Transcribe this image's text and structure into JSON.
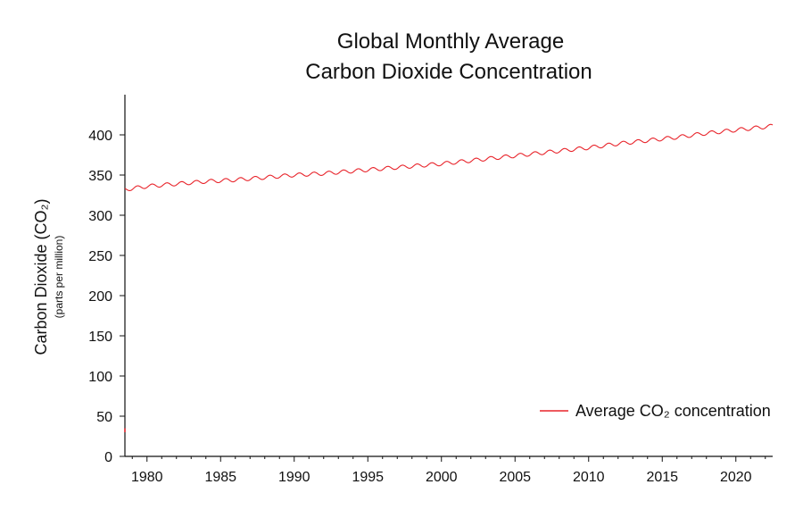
{
  "chart_data": {
    "type": "line",
    "title_lines": [
      "Global Monthly Average",
      "Carbon Dioxide Concentration"
    ],
    "ylabel": "Carbon Dioxide (CO₂)",
    "ylabel_sub": "(parts per million)",
    "xlabel": "",
    "xlim": [
      1978.5,
      2022.5
    ],
    "ylim": [
      0,
      450
    ],
    "x_ticks": [
      1980,
      1985,
      1990,
      1995,
      2000,
      2005,
      2010,
      2015,
      2020
    ],
    "x_tick_labels": [
      "1980",
      "1985",
      "1990",
      "1995",
      "2000",
      "2005",
      "2010",
      "2015",
      "2020"
    ],
    "y_ticks": [
      0,
      50,
      100,
      150,
      200,
      250,
      300,
      350,
      400
    ],
    "y_tick_labels": [
      "0",
      "50",
      "100",
      "150",
      "200",
      "250",
      "300",
      "350",
      "400"
    ],
    "grid": false,
    "legend_position": "bottom-right",
    "series": [
      {
        "name": "Average CO₂ concentration",
        "color": "#e8232a",
        "x": [
          1978.5,
          1980,
          1982,
          1984,
          1986,
          1988,
          1990,
          1992,
          1994,
          1996,
          1998,
          2000,
          2002,
          2004,
          2006,
          2008,
          2010,
          2012,
          2014,
          2016,
          2018,
          2020,
          2022.5
        ],
        "values": [
          332,
          336,
          339,
          342,
          344,
          347,
          350,
          352,
          355,
          358,
          361,
          364,
          368,
          372,
          376,
          380,
          384,
          389,
          393,
          397,
          402,
          406,
          411
        ],
        "seasonal_amplitude": 2.3
      }
    ]
  }
}
